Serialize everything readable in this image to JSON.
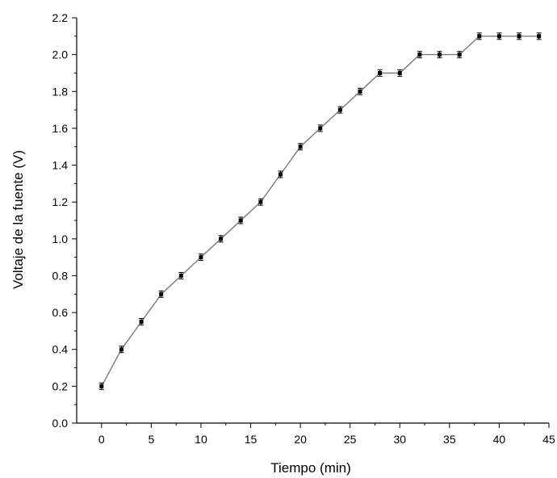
{
  "chart_data": {
    "type": "line",
    "xlabel": "Tiempo (min)",
    "ylabel": "Voltaje de la fuente (V)",
    "xlim": [
      -2.5,
      45
    ],
    "ylim": [
      0.0,
      2.2
    ],
    "xticks": [
      0,
      5,
      10,
      15,
      20,
      25,
      30,
      35,
      40,
      45
    ],
    "yticks": [
      0.0,
      0.2,
      0.4,
      0.6,
      0.8,
      1.0,
      1.2,
      1.4,
      1.6,
      1.8,
      2.0,
      2.2
    ],
    "xtick_labels": [
      "0",
      "5",
      "10",
      "15",
      "20",
      "25",
      "30",
      "35",
      "40",
      "45"
    ],
    "ytick_labels": [
      "0.0",
      "0.2",
      "0.4",
      "0.6",
      "0.8",
      "1.0",
      "1.2",
      "1.4",
      "1.6",
      "1.8",
      "2.0",
      "2.2"
    ],
    "grid": false,
    "series": [
      {
        "x": [
          0,
          2,
          4,
          6,
          8,
          10,
          12,
          14,
          16,
          18,
          20,
          22,
          24,
          26,
          28,
          30,
          32,
          34,
          36,
          38,
          40,
          42,
          44
        ],
        "values": [
          0.2,
          0.4,
          0.55,
          0.7,
          0.8,
          0.9,
          1.0,
          1.1,
          1.2,
          1.35,
          1.5,
          1.6,
          1.7,
          1.8,
          1.9,
          1.9,
          2.0,
          2.0,
          2.0,
          2.1,
          2.1,
          2.1,
          2.1
        ],
        "color": "#7a7a7a",
        "marker": "square",
        "error_bars": true
      }
    ]
  }
}
